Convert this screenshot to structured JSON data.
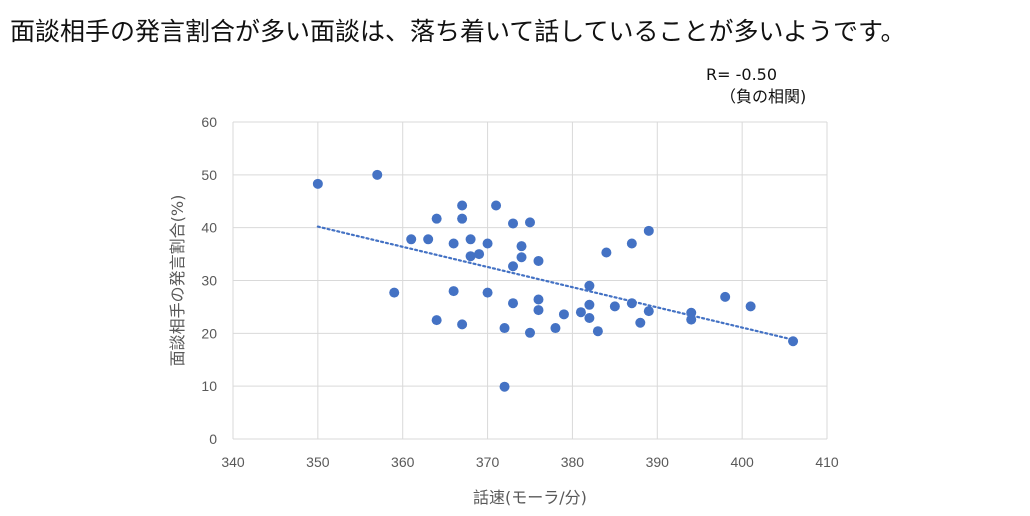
{
  "headline": "面談相手の発言割合が多い面談は、落ち着いて話していることが多いようです。",
  "annotation": {
    "line1": "R= -0.50",
    "line2": "（負の相関)"
  },
  "chart_data": {
    "type": "scatter",
    "xlabel": "話速(モーラ/分)",
    "ylabel": "面談相手の発言割合(%)",
    "xlim": [
      340,
      410
    ],
    "ylim": [
      0,
      60
    ],
    "xticks": [
      340,
      350,
      360,
      370,
      380,
      390,
      400,
      410
    ],
    "yticks": [
      0,
      10,
      20,
      30,
      40,
      50,
      60
    ],
    "grid": true,
    "marker_color": "#4472C4",
    "trendline": {
      "style": "dotted",
      "color": "#4472C4",
      "from": [
        350,
        40.2
      ],
      "to": [
        406,
        18.8
      ]
    },
    "points": [
      [
        350,
        48.3
      ],
      [
        357,
        50.0
      ],
      [
        359,
        27.7
      ],
      [
        361,
        37.8
      ],
      [
        363,
        37.8
      ],
      [
        364,
        41.7
      ],
      [
        364,
        22.5
      ],
      [
        366,
        37.0
      ],
      [
        366,
        28.0
      ],
      [
        367,
        44.2
      ],
      [
        367,
        41.7
      ],
      [
        367,
        21.7
      ],
      [
        368,
        37.8
      ],
      [
        368,
        34.6
      ],
      [
        369,
        35.0
      ],
      [
        370,
        37.0
      ],
      [
        370,
        27.7
      ],
      [
        371,
        44.2
      ],
      [
        372,
        21.0
      ],
      [
        372,
        9.9
      ],
      [
        373,
        40.8
      ],
      [
        373,
        32.7
      ],
      [
        373,
        25.7
      ],
      [
        374,
        36.5
      ],
      [
        374,
        34.4
      ],
      [
        375,
        41.0
      ],
      [
        375,
        20.1
      ],
      [
        376,
        33.7
      ],
      [
        376,
        26.4
      ],
      [
        376,
        24.4
      ],
      [
        378,
        21.0
      ],
      [
        379,
        23.6
      ],
      [
        381,
        24.0
      ],
      [
        382,
        29.0
      ],
      [
        382,
        25.4
      ],
      [
        382,
        22.9
      ],
      [
        383,
        20.4
      ],
      [
        384,
        35.3
      ],
      [
        385,
        25.1
      ],
      [
        387,
        37.0
      ],
      [
        387,
        25.7
      ],
      [
        388,
        22.0
      ],
      [
        389,
        39.4
      ],
      [
        389,
        24.2
      ],
      [
        394,
        23.9
      ],
      [
        394,
        22.6
      ],
      [
        398,
        26.9
      ],
      [
        401,
        25.1
      ],
      [
        406,
        18.5
      ]
    ]
  }
}
